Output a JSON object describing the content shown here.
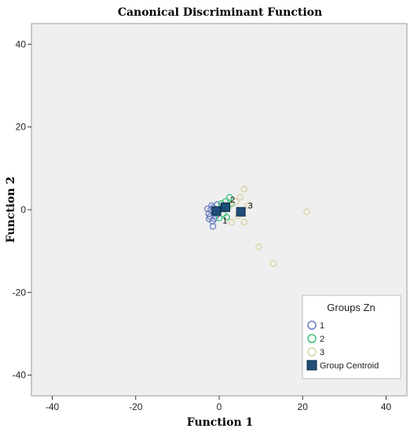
{
  "chart_data": {
    "type": "scatter",
    "title": "Canonical Discriminant Function",
    "xlabel": "Function 1",
    "ylabel": "Function 2",
    "xlim": [
      -45,
      45
    ],
    "ylim": [
      -45,
      45
    ],
    "xticks": [
      -40,
      -20,
      0,
      20,
      40
    ],
    "yticks": [
      -40,
      -20,
      0,
      20,
      40
    ],
    "legend": {
      "title": "Groups Zn",
      "placement": "bottom-right",
      "entries": [
        "1",
        "2",
        "3",
        "Group Centroid"
      ]
    },
    "series": [
      {
        "name": "1",
        "color": "#6a7fc4",
        "marker": "circle-open",
        "points": [
          [
            -1.5,
            -4
          ],
          [
            -2.5,
            -1
          ],
          [
            -2,
            0
          ],
          [
            -1.5,
            0.5
          ],
          [
            -1,
            -0.5
          ],
          [
            -2.2,
            -1.6
          ],
          [
            -1.8,
            1
          ],
          [
            -0.5,
            1.2
          ],
          [
            -0.8,
            -1.5
          ],
          [
            -2.8,
            0.2
          ],
          [
            -1.2,
            -2.2
          ],
          [
            0,
            0
          ],
          [
            -0.3,
            -1
          ],
          [
            0.5,
            0.3
          ],
          [
            -1.6,
            -2.8
          ],
          [
            -2.4,
            -2.2
          ]
        ]
      },
      {
        "name": "2",
        "color": "#3ec27a",
        "marker": "circle-open",
        "points": [
          [
            2.5,
            3
          ],
          [
            1.5,
            2
          ],
          [
            0.5,
            1.5
          ],
          [
            1,
            -1
          ],
          [
            2,
            0.5
          ],
          [
            0,
            -2
          ],
          [
            3,
            1.5
          ],
          [
            1.8,
            -1.8
          ],
          [
            0.8,
            0.2
          ]
        ]
      },
      {
        "name": "3",
        "color": "#d8d2a0",
        "marker": "circle-open",
        "points": [
          [
            6,
            5
          ],
          [
            5,
            3
          ],
          [
            4,
            2
          ],
          [
            6,
            -3
          ],
          [
            3,
            -3
          ],
          [
            21,
            -0.5
          ],
          [
            9.5,
            -9
          ],
          [
            13,
            -13
          ],
          [
            7,
            1
          ],
          [
            4.5,
            -1.5
          ],
          [
            2.5,
            1
          ]
        ]
      }
    ],
    "centroids": [
      {
        "label": "1",
        "x": -0.7,
        "y": -0.3
      },
      {
        "label": "2",
        "x": 1.5,
        "y": 0.6
      },
      {
        "label": "3",
        "x": 5.2,
        "y": -0.5
      }
    ],
    "centroid_color": "#1f4e79"
  }
}
